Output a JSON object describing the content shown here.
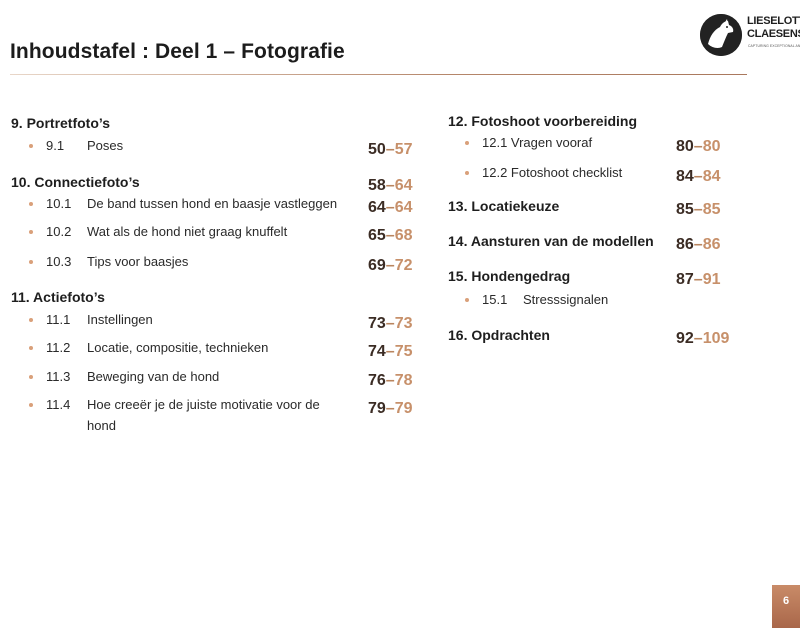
{
  "header": {
    "title": "Inhoudstafel : Deel 1 – Fotografie",
    "logo": {
      "name_line1": "LIESELOTTE",
      "name_line2": "CLAESENS",
      "tagline": "CAPTURING EXCEPTIONAL ANIMALS",
      "icon": "dog-silhouette-icon"
    }
  },
  "colors": {
    "accent": "#c7906a",
    "accent_dark": "#3b2c24",
    "bullet": "#d9a07a",
    "badge": "#b77a58"
  },
  "toc": {
    "left": [
      {
        "type": "heading",
        "label": "9. Portretfoto’s"
      },
      {
        "type": "sub",
        "num": "9.1",
        "label": "Poses",
        "from": "50",
        "to": "57"
      },
      {
        "type": "heading",
        "label": "10. Connectiefoto’s",
        "from": "58",
        "to": "64"
      },
      {
        "type": "sub",
        "num": "10.1",
        "label": "De band tussen hond en baasje vastleggen",
        "from": "64",
        "to": "64"
      },
      {
        "type": "sub",
        "num": "10.2",
        "label": "Wat als de hond niet graag knuffelt",
        "from": "65",
        "to": "68"
      },
      {
        "type": "sub",
        "num": "10.3",
        "label": "Tips voor baasjes",
        "from": "69",
        "to": "72"
      },
      {
        "type": "heading",
        "label": "11. Actiefoto’s"
      },
      {
        "type": "sub",
        "num": "11.1",
        "label": "Instellingen",
        "from": "73",
        "to": "73"
      },
      {
        "type": "sub",
        "num": "11.2",
        "label": "Locatie, compositie, technieken",
        "from": "74",
        "to": "75"
      },
      {
        "type": "sub",
        "num": "11.3",
        "label": "Beweging van de hond",
        "from": "76",
        "to": "78"
      },
      {
        "type": "sub",
        "num": "11.4",
        "label": "Hoe creeër je de juiste motivatie voor de",
        "label2": "hond",
        "from": "79",
        "to": "79"
      }
    ],
    "right": [
      {
        "type": "heading",
        "label": "12. Fotoshoot voorbereiding"
      },
      {
        "type": "sub",
        "num": "",
        "label": "12.1 Vragen vooraf",
        "from": "80",
        "to": "80"
      },
      {
        "type": "sub",
        "num": "",
        "label": "12.2 Fotoshoot checklist",
        "from": "84",
        "to": "84"
      },
      {
        "type": "heading",
        "label": "13. Locatiekeuze",
        "from": "85",
        "to": "85"
      },
      {
        "type": "heading",
        "label": "14. Aansturen van de modellen",
        "from": "86",
        "to": "86"
      },
      {
        "type": "heading",
        "label": "15. Hondengedrag",
        "from": "87",
        "to": "91"
      },
      {
        "type": "sub",
        "num": "15.1",
        "label": "Stresssignalen"
      },
      {
        "type": "heading",
        "label": "16. Opdrachten",
        "from": "92",
        "to": "109"
      }
    ]
  },
  "footer": {
    "page_number": "6"
  }
}
